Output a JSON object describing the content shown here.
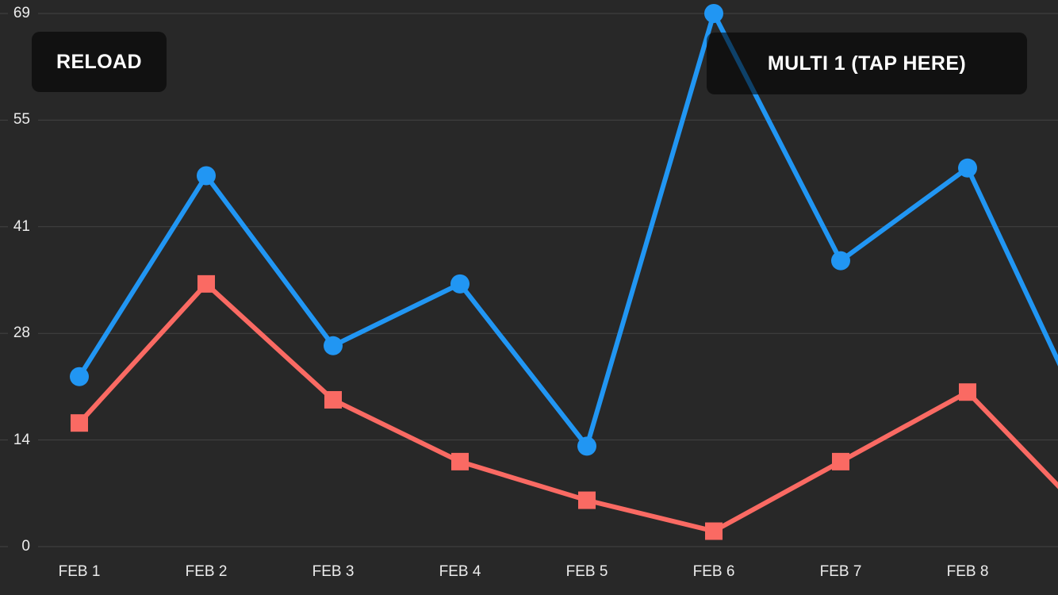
{
  "app": {
    "background_color": "#282828"
  },
  "buttons": {
    "reload": {
      "label": "RELOAD"
    },
    "multi": {
      "label": "MULTI 1 (TAP HERE)"
    }
  },
  "chart_data": {
    "type": "line",
    "title": "",
    "xlabel": "",
    "ylabel": "",
    "categories": [
      "FEB 1",
      "FEB 2",
      "FEB 3",
      "FEB 4",
      "FEB 5",
      "FEB 6",
      "FEB 7",
      "FEB 8"
    ],
    "series": [
      {
        "name": "blue-series",
        "color": "#2196F3",
        "marker": "circle",
        "values": [
          22,
          48,
          26,
          34,
          13,
          69,
          37,
          49
        ],
        "next_value_partially_visible": 14
      },
      {
        "name": "red-series",
        "color": "#FA6A63",
        "marker": "square",
        "values": [
          16,
          34,
          19,
          11,
          6,
          2,
          11,
          20
        ],
        "next_value_partially_visible": 3
      }
    ],
    "y_ticks": [
      0,
      14,
      28,
      41,
      55,
      69
    ],
    "ylim": [
      0,
      69
    ],
    "grid": true,
    "legend_position": "none",
    "colors": {
      "gridline": "rgba(255,255,255,0.13)",
      "axis_label": "#ECECEC",
      "button_overlay": "rgba(0,0,0,0.57)",
      "button_text": "#FFFFFF"
    }
  }
}
